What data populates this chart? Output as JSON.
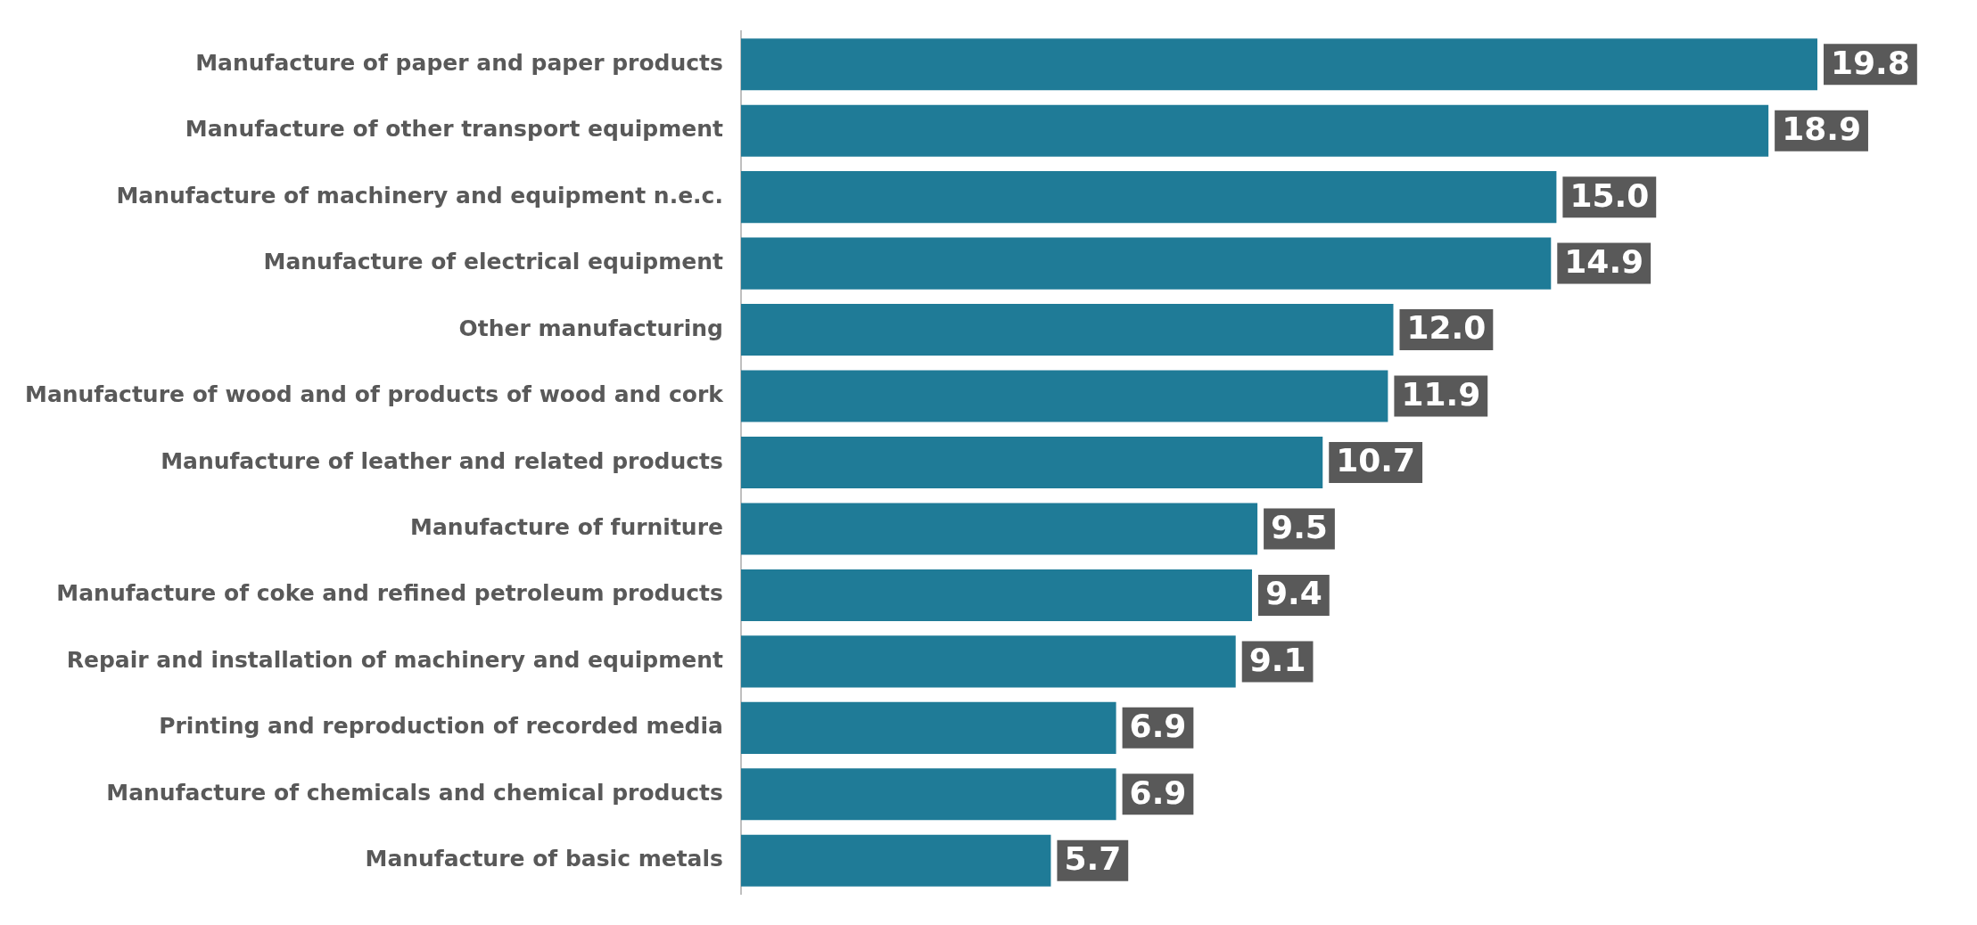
{
  "chart_data": {
    "type": "bar",
    "orientation": "horizontal",
    "categories": [
      "Manufacture of paper and paper products",
      "Manufacture of other transport equipment",
      "Manufacture of machinery and equipment n.e.c.",
      "Manufacture of electrical equipment",
      "Other manufacturing",
      "Manufacture of wood and of products of wood and cork",
      "Manufacture of leather and related products",
      "Manufacture of furniture",
      "Manufacture of coke and refined petroleum products",
      "Repair and installation of machinery and equipment",
      "Printing and reproduction of recorded media",
      "Manufacture of chemicals and chemical products",
      "Manufacture of basic metals"
    ],
    "values": [
      19.8,
      18.9,
      15.0,
      14.9,
      12.0,
      11.9,
      10.7,
      9.5,
      9.4,
      9.1,
      6.9,
      6.9,
      5.7
    ],
    "value_labels": [
      "19.8",
      "18.9",
      "15.0",
      "14.9",
      "12.0",
      "11.9",
      "10.7",
      "9.5",
      "9.4",
      "9.1",
      "6.9",
      "6.9",
      "5.7"
    ],
    "color": "#1f7b97",
    "grid": false,
    "legend": false,
    "tick_labels": "y"
  }
}
